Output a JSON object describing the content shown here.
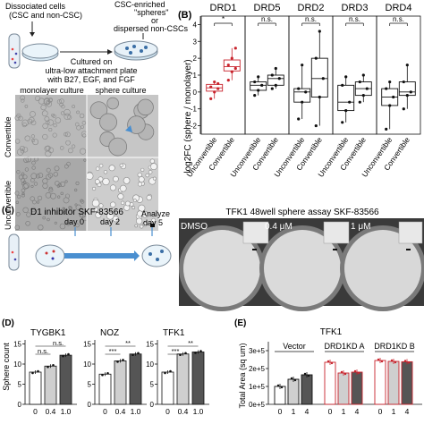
{
  "panelA": {
    "top_left_label": "Dissociated cells\n(CSC and non-CSC)",
    "top_right_label": "CSC-enriched\n\"spheres\"\nor\ndispersed non-CSCs",
    "culture_label": "Cultured on\nultra-low attachment plate\nwith B27, EGF, and FGF",
    "mono_label": "monolayer culture",
    "sphere_label": "sphere culture",
    "row1": "Convertible",
    "row2": "Unconvertible"
  },
  "panelB": {
    "ylabel": "log2FC (sphere / monolayer)",
    "yticks": [
      "4",
      "3",
      "2",
      "1",
      "0",
      "-1",
      "-2"
    ],
    "cat1": "Unconvertible",
    "cat2": "Convertible",
    "plots": [
      {
        "title": "DRD1",
        "sig": "*"
      },
      {
        "title": "DRD5",
        "sig": "n.s."
      },
      {
        "title": "DRD2",
        "sig": "n.s."
      },
      {
        "title": "DRD3",
        "sig": "n.s."
      },
      {
        "title": "DRD4",
        "sig": "n.s."
      }
    ]
  },
  "panelC": {
    "letter": "(C)",
    "inhibitor": "D1 inhibitor SKF-83566",
    "day0": "day 0",
    "day2": "day 2",
    "analyze": "Analyze",
    "day5": "day 5",
    "assay_title": "TFK1 48well sphere assay SKF-83566",
    "dmso": "DMSO",
    "c1": "0.4 μM",
    "c2": "1 μM"
  },
  "panelD": {
    "letter": "(D)",
    "ylabel": "Sphere count",
    "yticks": [
      "15",
      "10",
      "5",
      "0"
    ],
    "xticks": [
      "0",
      "0.4",
      "1.0"
    ],
    "plots": [
      {
        "title": "TYGBK1",
        "sig_top": "n.s.",
        "sig_mid": "n.s."
      },
      {
        "title": "NOZ",
        "sig_top": "**",
        "sig_mid": "***"
      },
      {
        "title": "TFK1",
        "sig_top": "**",
        "sig_mid": "***"
      }
    ]
  },
  "panelE": {
    "letter": "(E)",
    "title": "TFK1",
    "ylabel": "Total Area (sq um)",
    "yticks": [
      "3e+5",
      "2e+5",
      "1e+5",
      "0e+5"
    ],
    "xticks": [
      "0",
      "1",
      "4"
    ],
    "groups": [
      "Vector",
      "DRD1KD A",
      "DRD1KD B"
    ]
  },
  "colors": {
    "red": "#c8232c",
    "black": "#111111",
    "grey_light": "#cfcfcf",
    "grey_dark": "#555555"
  },
  "chart_data": [
    {
      "type": "scatter",
      "title": "DRD1",
      "categories": [
        "Unconvertible",
        "Convertible"
      ],
      "series": [
        {
          "name": "Unconvertible",
          "values": [
            -0.4,
            0.0,
            0.2,
            0.3,
            0.6,
            0.5
          ]
        },
        {
          "name": "Convertible",
          "values": [
            0.7,
            1.2,
            1.4,
            1.6,
            2.0,
            2.6
          ]
        }
      ],
      "ylim": [
        -2.5,
        4.5
      ]
    },
    {
      "type": "scatter",
      "title": "DRD5",
      "categories": [
        "Unconvertible",
        "Convertible"
      ],
      "series": [
        {
          "name": "Unconvertible",
          "values": [
            -0.2,
            0.1,
            0.4,
            0.6,
            0.9
          ]
        },
        {
          "name": "Convertible",
          "values": [
            0.2,
            0.4,
            0.8,
            1.0,
            1.4
          ]
        }
      ],
      "ylim": [
        -2.5,
        4.5
      ]
    },
    {
      "type": "scatter",
      "title": "DRD2",
      "categories": [
        "Unconvertible",
        "Convertible"
      ],
      "series": [
        {
          "name": "Unconvertible",
          "values": [
            -1.6,
            -0.6,
            0.0,
            0.2,
            1.6
          ]
        },
        {
          "name": "Convertible",
          "values": [
            -2.0,
            -0.3,
            0.8,
            2.0,
            3.6
          ]
        }
      ],
      "ylim": [
        -2.5,
        4.5
      ]
    },
    {
      "type": "scatter",
      "title": "DRD3",
      "categories": [
        "Unconvertible",
        "Convertible"
      ],
      "series": [
        {
          "name": "Unconvertible",
          "values": [
            -1.8,
            -1.1,
            -0.6,
            0.4,
            0.9
          ]
        },
        {
          "name": "Convertible",
          "values": [
            -0.6,
            -0.2,
            0.2,
            0.6,
            1.0
          ]
        }
      ],
      "ylim": [
        -2.5,
        4.5
      ]
    },
    {
      "type": "scatter",
      "title": "DRD4",
      "categories": [
        "Unconvertible",
        "Convertible"
      ],
      "series": [
        {
          "name": "Unconvertible",
          "values": [
            -2.2,
            -0.8,
            -0.3,
            0.2,
            0.6
          ]
        },
        {
          "name": "Convertible",
          "values": [
            -1.0,
            -0.2,
            0.0,
            0.6,
            1.6
          ]
        }
      ],
      "ylim": [
        -2.5,
        4.5
      ]
    },
    {
      "type": "bar",
      "title": "TYGBK1",
      "categories": [
        "0",
        "0.4",
        "1.0"
      ],
      "values": [
        8.0,
        9.5,
        12.2
      ],
      "ylim": [
        0,
        16
      ]
    },
    {
      "type": "bar",
      "title": "NOZ",
      "categories": [
        "0",
        "0.4",
        "1.0"
      ],
      "values": [
        7.5,
        10.8,
        12.5
      ],
      "ylim": [
        0,
        16
      ]
    },
    {
      "type": "bar",
      "title": "TFK1",
      "categories": [
        "0",
        "0.4",
        "1.0"
      ],
      "values": [
        8.0,
        12.5,
        13.0
      ],
      "ylim": [
        0,
        16
      ]
    },
    {
      "type": "bar",
      "title": "TFK1",
      "categories": [
        "0",
        "1",
        "4"
      ],
      "series": [
        {
          "name": "Vector",
          "values": [
            100000,
            140000,
            165000
          ]
        },
        {
          "name": "DRD1KD A",
          "values": [
            235000,
            175000,
            180000
          ]
        },
        {
          "name": "DRD1KD B",
          "values": [
            245000,
            240000,
            238000
          ]
        }
      ],
      "ylim": [
        0,
        350000
      ]
    }
  ]
}
